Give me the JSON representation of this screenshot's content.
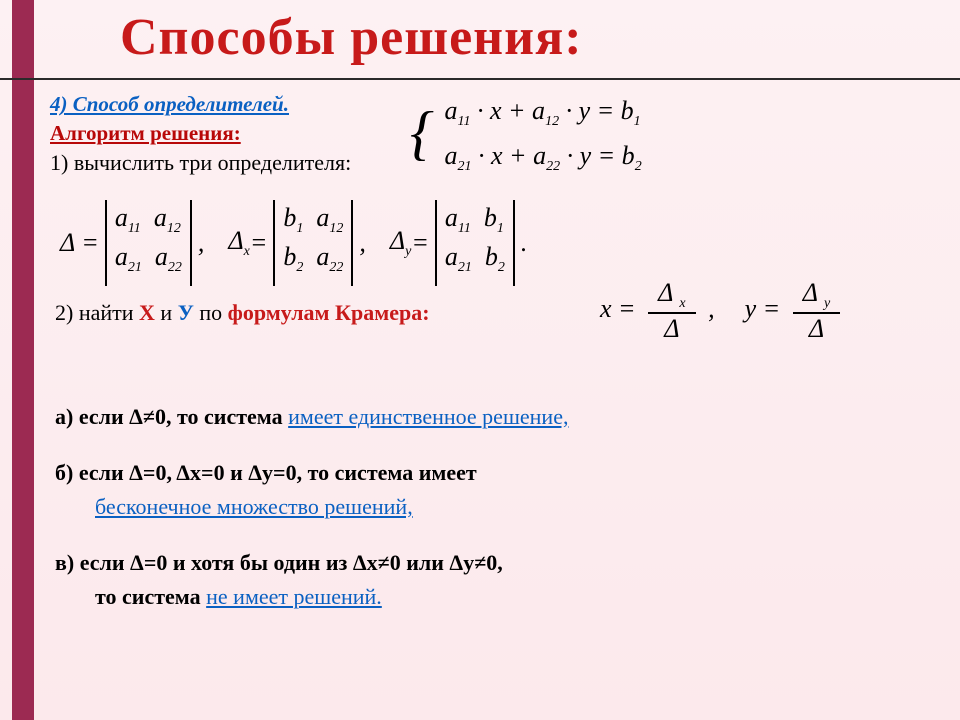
{
  "title": "Способы  решения:",
  "heading4": "4)  Способ  определителей.",
  "algo_label": "Алгоритм  решения:",
  "step1": "1) вычислить  три  определителя:",
  "system": {
    "eq1": "a₁₁ · x + a₁₂ · y = b₁",
    "eq2": "a₂₁ · x + a₂₂ · y = b₂"
  },
  "determinants": {
    "delta_label": "Δ =",
    "delta_x_label": "Δ",
    "delta_y_label": "Δ",
    "x_sub": "x",
    "y_sub": "y",
    "eq": " =",
    "m1": {
      "r1": "a₁₁  a₁₂",
      "r2": "a₂₁  a₂₂"
    },
    "m2": {
      "r1": "b₁  a₁₂",
      "r2": "b₂  a₂₂"
    },
    "m3": {
      "r1": "a₁₁  b₁",
      "r2": "a₂₁  b₂"
    },
    "comma": ",",
    "period": "."
  },
  "step2": {
    "prefix": "2) найти ",
    "x": "Х",
    "mid": " и ",
    "y": "У",
    "mid2": " по ",
    "kramer": "формулам  Крамера:"
  },
  "cramer": {
    "x_lhs": "x =",
    "y_lhs": "y =",
    "dx": "Δ ",
    "dx_sub": "x",
    "dy": "Δ ",
    "dy_sub": "y",
    "d": "Δ",
    "comma": ","
  },
  "cases": {
    "a_pre": "а) если  Δ≠0,  то  система  ",
    "a_ul": "имеет  единственное  решение,",
    "b_pre": "б) если  Δ=0,  Δх=0  и  Δу=0,  то  система  имеет",
    "b_ul": "бесконечное  множество  решений,",
    "c_pre": "в) если  Δ=0  и  хотя  бы  один  из  Δх≠0  или  Δу≠0,",
    "c_mid": "то  система  ",
    "c_ul": "не  имеет  решений."
  },
  "colors": {
    "accent_red": "#c71a1a",
    "accent_blue": "#0a60c2",
    "stripe": "#9c2a52",
    "bg": "#fce9ec"
  }
}
